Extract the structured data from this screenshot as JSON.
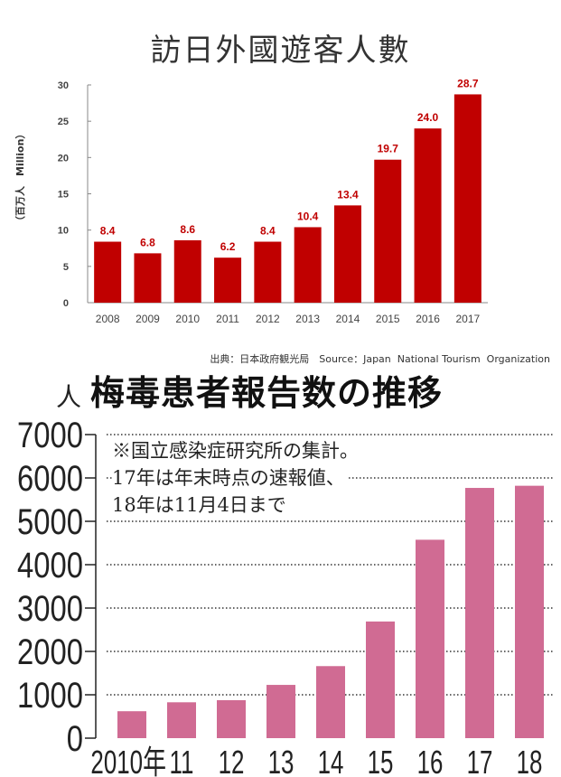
{
  "chart_data": [
    {
      "type": "bar",
      "title": "訪日外國遊客人數",
      "ylabel": "（百万人　Million）",
      "xlabel": "",
      "categories": [
        "2008",
        "2009",
        "2010",
        "2011",
        "2012",
        "2013",
        "2014",
        "2015",
        "2016",
        "2017"
      ],
      "values": [
        8.4,
        6.8,
        8.6,
        6.2,
        8.4,
        10.4,
        13.4,
        19.7,
        24.0,
        28.7
      ],
      "data_labels": [
        "8.4",
        "6.8",
        "8.6",
        "6.2",
        "8.4",
        "10.4",
        "13.4",
        "19.7",
        "24.0",
        "28.7"
      ],
      "ylim": [
        0,
        30
      ],
      "yticks": [
        "0",
        "5",
        "10",
        "15",
        "20",
        "25",
        "30"
      ],
      "grid": false,
      "bar_color": "#c00000",
      "source": "出典：日本政府観光局　Source：Japan  National Tourism  Organization"
    },
    {
      "type": "bar",
      "title": "梅毒患者報告数の推移",
      "unit": "人",
      "categories": [
        "2010年",
        "11",
        "12",
        "13",
        "14",
        "15",
        "16",
        "17",
        "18"
      ],
      "values": [
        621,
        827,
        875,
        1228,
        1661,
        2690,
        4575,
        5770,
        5820
      ],
      "ylim": [
        0,
        7000
      ],
      "yticks": [
        "0",
        "1000",
        "2000",
        "3000",
        "4000",
        "5000",
        "6000",
        "7000"
      ],
      "grid": true,
      "bar_color": "#d06b93",
      "note": [
        "※国立感染症研究所の集計。",
        "17年は年末時点の速報値、",
        "18年は11月4日まで"
      ]
    }
  ]
}
